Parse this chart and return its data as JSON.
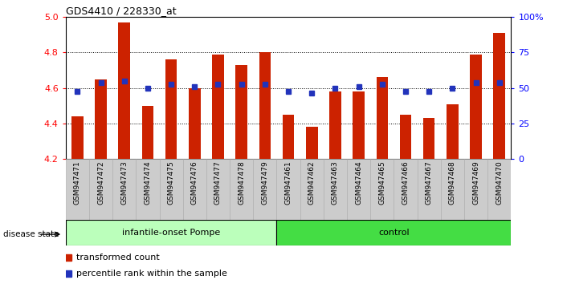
{
  "title": "GDS4410 / 228330_at",
  "samples": [
    "GSM947471",
    "GSM947472",
    "GSM947473",
    "GSM947474",
    "GSM947475",
    "GSM947476",
    "GSM947477",
    "GSM947478",
    "GSM947479",
    "GSM947461",
    "GSM947462",
    "GSM947463",
    "GSM947464",
    "GSM947465",
    "GSM947466",
    "GSM947467",
    "GSM947468",
    "GSM947469",
    "GSM947470"
  ],
  "bar_values": [
    4.44,
    4.65,
    4.97,
    4.5,
    4.76,
    4.6,
    4.79,
    4.73,
    4.8,
    4.45,
    4.38,
    4.58,
    4.58,
    4.66,
    4.45,
    4.43,
    4.51,
    4.79,
    4.91
  ],
  "dot_values": [
    4.58,
    4.63,
    4.64,
    4.6,
    4.62,
    4.61,
    4.62,
    4.62,
    4.62,
    4.58,
    4.57,
    4.6,
    4.61,
    4.62,
    4.58,
    4.58,
    4.6,
    4.63,
    4.63
  ],
  "ymin": 4.2,
  "ymax": 5.0,
  "y2min": 0,
  "y2max": 100,
  "bar_color": "#cc2200",
  "dot_color": "#2233bb",
  "group1_label": "infantile-onset Pompe",
  "group2_label": "control",
  "group1_color": "#bbffbb",
  "group2_color": "#44dd44",
  "group1_count": 9,
  "group2_count": 10,
  "disease_state_label": "disease state",
  "legend1": "transformed count",
  "legend2": "percentile rank within the sample",
  "yticks_left": [
    4.2,
    4.4,
    4.6,
    4.8,
    5.0
  ],
  "yticks_right": [
    0,
    25,
    50,
    75,
    100
  ],
  "grid_values": [
    4.4,
    4.6,
    4.8
  ],
  "bar_baseline": 4.2,
  "bar_width": 0.5,
  "bg_color": "#ffffff",
  "xtick_bg": "#cccccc",
  "xtick_border": "#aaaaaa"
}
